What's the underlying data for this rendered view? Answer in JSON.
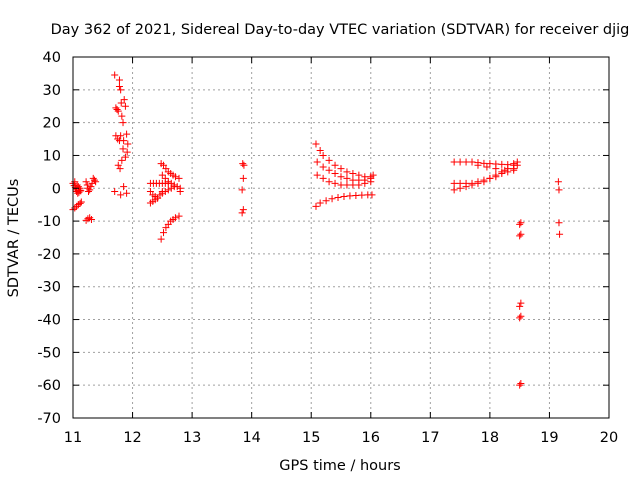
{
  "chart_data": {
    "type": "scatter",
    "title": "Day 362 of 2021, Sidereal Day-to-day VTEC variation (SDTVAR) for receiver djig",
    "xlabel": "GPS time / hours",
    "ylabel": "SDTVAR / TECUs",
    "xlim": [
      11,
      20
    ],
    "ylim": [
      -70,
      40
    ],
    "x_ticks": [
      11,
      12,
      13,
      14,
      15,
      16,
      17,
      18,
      19,
      20
    ],
    "y_ticks": [
      40,
      30,
      20,
      10,
      0,
      -10,
      -20,
      -30,
      -40,
      -50,
      -60,
      -70
    ],
    "grid": true,
    "marker": "+",
    "series_color": "#ff0000",
    "series": [
      {
        "name": "SDTVAR",
        "points": [
          [
            11.0,
            1.5
          ],
          [
            11.02,
            0.8
          ],
          [
            11.04,
            0.2
          ],
          [
            11.05,
            -0.5
          ],
          [
            11.06,
            -1.0
          ],
          [
            11.08,
            -1.5
          ],
          [
            11.1,
            -1.2
          ],
          [
            11.12,
            -0.6
          ],
          [
            11.03,
            2.0
          ],
          [
            11.07,
            1.0
          ],
          [
            11.09,
            0.5
          ],
          [
            11.11,
            0.0
          ],
          [
            11.13,
            -0.8
          ],
          [
            11.0,
            -6.5
          ],
          [
            11.03,
            -6.0
          ],
          [
            11.06,
            -5.5
          ],
          [
            11.09,
            -5.0
          ],
          [
            11.12,
            -4.6
          ],
          [
            11.14,
            -4.2
          ],
          [
            11.22,
            2.0
          ],
          [
            11.24,
            1.0
          ],
          [
            11.25,
            0.0
          ],
          [
            11.26,
            -1.0
          ],
          [
            11.28,
            -0.5
          ],
          [
            11.3,
            0.5
          ],
          [
            11.32,
            1.5
          ],
          [
            11.22,
            -9.8
          ],
          [
            11.25,
            -9.3
          ],
          [
            11.28,
            -9.0
          ],
          [
            11.31,
            -9.5
          ],
          [
            11.34,
            3.0
          ],
          [
            11.36,
            2.5
          ],
          [
            11.38,
            2.0
          ],
          [
            11.7,
            34.5
          ],
          [
            11.72,
            24.5
          ],
          [
            11.74,
            24.0
          ],
          [
            11.76,
            23.5
          ],
          [
            11.78,
            31.0
          ],
          [
            11.8,
            30.0
          ],
          [
            11.82,
            22.0
          ],
          [
            11.84,
            20.0
          ],
          [
            11.86,
            27.0
          ],
          [
            11.88,
            25.0
          ],
          [
            11.9,
            16.5
          ],
          [
            11.92,
            13.5
          ],
          [
            11.78,
            33.0
          ],
          [
            11.81,
            26.0
          ],
          [
            11.85,
            14.5
          ],
          [
            11.72,
            16.0
          ],
          [
            11.75,
            15.0
          ],
          [
            11.78,
            14.5
          ],
          [
            11.8,
            16.0
          ],
          [
            11.84,
            12.0
          ],
          [
            11.88,
            9.5
          ],
          [
            11.91,
            11.0
          ],
          [
            11.76,
            7.0
          ],
          [
            11.79,
            6.0
          ],
          [
            11.82,
            8.5
          ],
          [
            11.7,
            -1.0
          ],
          [
            11.8,
            -2.0
          ],
          [
            11.85,
            0.5
          ],
          [
            11.9,
            -1.5
          ],
          [
            12.3,
            1.5
          ],
          [
            12.35,
            1.5
          ],
          [
            12.4,
            1.5
          ],
          [
            12.45,
            1.5
          ],
          [
            12.5,
            1.5
          ],
          [
            12.55,
            1.5
          ],
          [
            12.6,
            1.5
          ],
          [
            12.3,
            -1.0
          ],
          [
            12.34,
            -2.0
          ],
          [
            12.38,
            -2.5
          ],
          [
            12.42,
            -3.0
          ],
          [
            12.46,
            -2.0
          ],
          [
            12.5,
            -1.0
          ],
          [
            12.3,
            -4.5
          ],
          [
            12.34,
            -4.0
          ],
          [
            12.38,
            -3.5
          ],
          [
            12.42,
            -3.0
          ],
          [
            12.48,
            7.5
          ],
          [
            12.52,
            7.0
          ],
          [
            12.56,
            6.0
          ],
          [
            12.6,
            5.0
          ],
          [
            12.64,
            4.5
          ],
          [
            12.68,
            4.0
          ],
          [
            12.72,
            3.5
          ],
          [
            12.78,
            3.0
          ],
          [
            12.5,
            4.0
          ],
          [
            12.55,
            3.0
          ],
          [
            12.6,
            2.0
          ],
          [
            12.65,
            1.5
          ],
          [
            12.7,
            1.0
          ],
          [
            12.75,
            0.5
          ],
          [
            12.8,
            0.0
          ],
          [
            12.5,
            -1.5
          ],
          [
            12.55,
            -1.0
          ],
          [
            12.6,
            -0.5
          ],
          [
            12.65,
            0.0
          ],
          [
            12.7,
            0.5
          ],
          [
            12.8,
            -1.0
          ],
          [
            12.48,
            -15.5
          ],
          [
            12.52,
            -13.5
          ],
          [
            12.56,
            -12.0
          ],
          [
            12.6,
            -11.0
          ],
          [
            12.64,
            -10.0
          ],
          [
            12.68,
            -9.5
          ],
          [
            12.72,
            -9.0
          ],
          [
            12.78,
            -8.5
          ],
          [
            13.85,
            7.5
          ],
          [
            13.87,
            7.0
          ],
          [
            13.86,
            3.0
          ],
          [
            13.84,
            -0.5
          ],
          [
            13.86,
            -6.5
          ],
          [
            13.84,
            -7.5
          ],
          [
            15.08,
            13.5
          ],
          [
            15.15,
            11.5
          ],
          [
            15.2,
            10.0
          ],
          [
            15.3,
            8.5
          ],
          [
            15.4,
            7.0
          ],
          [
            15.5,
            6.0
          ],
          [
            15.6,
            5.0
          ],
          [
            15.7,
            4.5
          ],
          [
            15.8,
            4.0
          ],
          [
            15.9,
            3.5
          ],
          [
            16.0,
            3.5
          ],
          [
            16.04,
            4.0
          ],
          [
            15.1,
            8.0
          ],
          [
            15.2,
            6.5
          ],
          [
            15.3,
            5.5
          ],
          [
            15.4,
            4.5
          ],
          [
            15.5,
            3.5
          ],
          [
            15.6,
            3.0
          ],
          [
            15.7,
            2.5
          ],
          [
            15.8,
            2.5
          ],
          [
            15.9,
            2.5
          ],
          [
            16.0,
            3.0
          ],
          [
            15.1,
            4.0
          ],
          [
            15.2,
            3.0
          ],
          [
            15.3,
            2.0
          ],
          [
            15.4,
            1.5
          ],
          [
            15.5,
            1.0
          ],
          [
            15.6,
            1.0
          ],
          [
            15.7,
            1.0
          ],
          [
            15.8,
            1.0
          ],
          [
            15.9,
            1.5
          ],
          [
            16.0,
            2.0
          ],
          [
            15.08,
            -5.5
          ],
          [
            15.15,
            -4.5
          ],
          [
            15.25,
            -3.8
          ],
          [
            15.35,
            -3.2
          ],
          [
            15.45,
            -2.8
          ],
          [
            15.55,
            -2.5
          ],
          [
            15.65,
            -2.3
          ],
          [
            15.75,
            -2.2
          ],
          [
            15.85,
            -2.1
          ],
          [
            15.95,
            -2.0
          ],
          [
            16.02,
            -2.0
          ],
          [
            17.4,
            8.0
          ],
          [
            17.5,
            8.0
          ],
          [
            17.6,
            8.0
          ],
          [
            17.7,
            8.0
          ],
          [
            17.8,
            7.8
          ],
          [
            17.9,
            7.6
          ],
          [
            18.0,
            7.5
          ],
          [
            18.1,
            7.4
          ],
          [
            18.2,
            7.3
          ],
          [
            18.3,
            7.2
          ],
          [
            18.4,
            7.5
          ],
          [
            18.46,
            8.0
          ],
          [
            17.8,
            7.0
          ],
          [
            17.95,
            6.5
          ],
          [
            18.1,
            6.0
          ],
          [
            18.25,
            5.5
          ],
          [
            18.4,
            5.5
          ],
          [
            17.4,
            1.5
          ],
          [
            17.5,
            1.5
          ],
          [
            17.6,
            1.5
          ],
          [
            17.7,
            1.5
          ],
          [
            17.8,
            2.0
          ],
          [
            17.9,
            2.5
          ],
          [
            18.0,
            3.0
          ],
          [
            18.1,
            3.5
          ],
          [
            18.2,
            4.5
          ],
          [
            18.3,
            5.0
          ],
          [
            18.4,
            6.0
          ],
          [
            18.46,
            7.0
          ],
          [
            17.4,
            -0.5
          ],
          [
            17.5,
            0.0
          ],
          [
            17.6,
            0.5
          ],
          [
            17.7,
            1.0
          ],
          [
            17.8,
            1.5
          ],
          [
            17.9,
            2.0
          ],
          [
            18.0,
            3.0
          ],
          [
            18.1,
            4.0
          ],
          [
            18.2,
            5.0
          ],
          [
            18.3,
            6.0
          ],
          [
            18.4,
            7.0
          ],
          [
            18.5,
            -11.0
          ],
          [
            18.52,
            -10.5
          ],
          [
            18.5,
            -14.5
          ],
          [
            18.52,
            -14.0
          ],
          [
            18.5,
            -36.0
          ],
          [
            18.52,
            -35.0
          ],
          [
            18.5,
            -39.5
          ],
          [
            18.52,
            -39.0
          ],
          [
            18.5,
            -60.0
          ],
          [
            18.52,
            -59.5
          ],
          [
            19.15,
            2.0
          ],
          [
            19.16,
            -0.5
          ],
          [
            19.16,
            -10.5
          ],
          [
            19.17,
            -14.0
          ]
        ]
      }
    ]
  }
}
